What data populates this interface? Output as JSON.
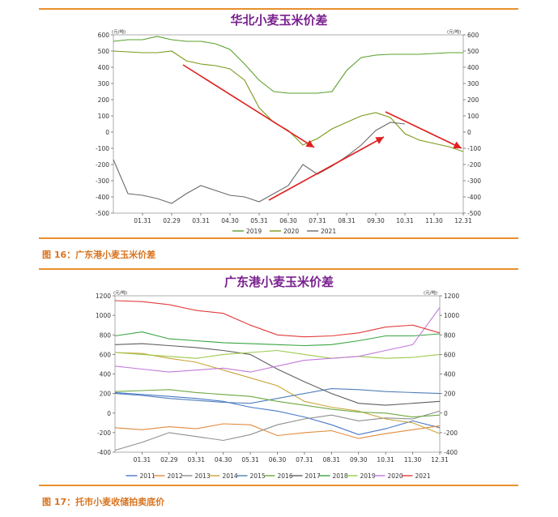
{
  "figure16": {
    "caption": "图 16：广东港小麦玉米价差"
  },
  "figure17": {
    "caption": "图 17：托市小麦收储拍卖底价"
  },
  "chart_data": [
    {
      "type": "line",
      "title": "华北小麦玉米价差",
      "unit_label": "(元/吨)",
      "ylim": [
        -500,
        600
      ],
      "y_ticks": [
        "600",
        "500",
        "400",
        "300",
        "200",
        "100",
        "0",
        "-100",
        "-200",
        "-300",
        "-400",
        "-500"
      ],
      "x_tick_labels": [
        "01.31",
        "02.29",
        "03.31",
        "04.30",
        "05.31",
        "06.30",
        "07.31",
        "08.31",
        "09.30",
        "10.31",
        "11.30",
        "12.31"
      ],
      "legend_position": "bottom",
      "series": [
        {
          "name": "2019",
          "color": "#5aa02c",
          "x": [
            0,
            0.5,
            1,
            1.5,
            2,
            2.5,
            3,
            3.5,
            4,
            4.5,
            5,
            5.5,
            6,
            6.5,
            7,
            7.5,
            8,
            8.5,
            9,
            9.5,
            10,
            10.5,
            11,
            11.5,
            12
          ],
          "values": [
            560,
            570,
            570,
            590,
            570,
            560,
            560,
            545,
            510,
            420,
            320,
            250,
            240,
            240,
            240,
            250,
            380,
            460,
            475,
            480,
            480,
            480,
            485,
            490,
            490
          ]
        },
        {
          "name": "2020",
          "color": "#7a9a1a",
          "x": [
            0,
            0.5,
            1,
            1.5,
            2,
            2.5,
            3,
            3.5,
            4,
            4.5,
            5,
            5.5,
            6,
            6.5,
            7,
            7.5,
            8,
            8.5,
            9,
            9.5,
            10,
            10.5,
            11,
            11.5,
            12
          ],
          "values": [
            500,
            495,
            490,
            490,
            500,
            440,
            420,
            410,
            390,
            320,
            150,
            60,
            10,
            -80,
            -40,
            20,
            60,
            100,
            120,
            90,
            -10,
            -50,
            -70,
            -90,
            -120
          ]
        },
        {
          "name": "2021",
          "color": "#6b6b6b",
          "x": [
            0,
            0.5,
            1,
            1.5,
            2,
            2.5,
            3,
            3.5,
            4,
            4.5,
            5,
            5.5,
            6,
            6.5,
            7,
            7.5,
            8,
            8.5,
            9,
            9.5,
            10
          ],
          "values": [
            -170,
            -380,
            -390,
            -410,
            -440,
            -380,
            -330,
            -360,
            -390,
            -400,
            -430,
            -380,
            -330,
            -200,
            -260,
            -210,
            -150,
            -80,
            10,
            60,
            50
          ]
        }
      ],
      "annotations": [
        "down-arrow 02.20–07.31",
        "up-arrow 05.31–10.15",
        "down-arrow 10.10–12.31"
      ]
    },
    {
      "type": "line",
      "title": "广东港小麦玉米价差",
      "unit_label": "(元/吨)",
      "ylim": [
        -400,
        1200
      ],
      "y_ticks": [
        "1200",
        "1000",
        "800",
        "600",
        "400",
        "200",
        "0",
        "-200",
        "-400"
      ],
      "x_tick_labels": [
        "01.31",
        "02.29",
        "03.31",
        "04.30",
        "05.31",
        "06.30",
        "07.31",
        "08.31",
        "09.30",
        "10.31",
        "11.30",
        "12.31"
      ],
      "legend_position": "bottom",
      "series": [
        {
          "name": "2011",
          "color": "#4a78c8",
          "x": [
            0,
            1,
            2,
            3,
            4,
            5,
            6,
            7,
            8,
            9,
            10,
            11,
            12
          ],
          "values": [
            210,
            190,
            170,
            150,
            120,
            60,
            20,
            -40,
            -120,
            -220,
            -160,
            -80,
            -150
          ]
        },
        {
          "name": "2012",
          "color": "#e28a3c",
          "x": [
            0,
            1,
            2,
            3,
            4,
            5,
            6,
            7,
            8,
            9,
            10,
            11,
            12
          ],
          "values": [
            -150,
            -170,
            -140,
            -160,
            -110,
            -120,
            -230,
            -200,
            -180,
            -260,
            -210,
            -170,
            -130
          ]
        },
        {
          "name": "2013",
          "color": "#8f8f8f",
          "x": [
            0,
            1,
            2,
            3,
            4,
            5,
            6,
            7,
            8,
            9,
            10,
            11,
            12
          ],
          "values": [
            -380,
            -300,
            -200,
            -240,
            -280,
            -220,
            -120,
            -60,
            -20,
            -80,
            -50,
            -60,
            20
          ]
        },
        {
          "name": "2014",
          "color": "#c9a53a",
          "x": [
            0,
            1,
            2,
            3,
            4,
            5,
            6,
            7,
            8,
            9,
            10,
            11,
            12
          ],
          "values": [
            620,
            610,
            560,
            520,
            440,
            360,
            280,
            120,
            60,
            20,
            -60,
            -100,
            -210
          ]
        },
        {
          "name": "2015",
          "color": "#4f7fb8",
          "x": [
            0,
            1,
            2,
            3,
            4,
            5,
            6,
            7,
            8,
            9,
            10,
            11,
            12
          ],
          "values": [
            200,
            180,
            150,
            130,
            110,
            100,
            150,
            200,
            250,
            240,
            220,
            210,
            200
          ]
        },
        {
          "name": "2016",
          "color": "#6ea842",
          "x": [
            0,
            1,
            2,
            3,
            4,
            5,
            6,
            7,
            8,
            9,
            10,
            11,
            12
          ],
          "values": [
            220,
            230,
            240,
            210,
            190,
            170,
            120,
            80,
            40,
            10,
            0,
            -40,
            -20
          ]
        },
        {
          "name": "2017",
          "color": "#5f5f5f",
          "x": [
            0,
            1,
            2,
            3,
            4,
            5,
            6,
            7,
            8,
            9,
            10,
            11,
            12
          ],
          "values": [
            700,
            710,
            690,
            670,
            640,
            600,
            450,
            320,
            200,
            100,
            80,
            100,
            120
          ]
        },
        {
          "name": "2018",
          "color": "#3aa542",
          "x": [
            0,
            1,
            2,
            3,
            4,
            5,
            6,
            7,
            8,
            9,
            10,
            11,
            12
          ],
          "values": [
            790,
            830,
            760,
            740,
            720,
            710,
            700,
            690,
            700,
            740,
            790,
            790,
            810
          ]
        },
        {
          "name": "2019",
          "color": "#9dc94a",
          "x": [
            0,
            1,
            2,
            3,
            4,
            5,
            6,
            7,
            8,
            9,
            10,
            11,
            12
          ],
          "values": [
            620,
            600,
            580,
            560,
            600,
            620,
            640,
            600,
            560,
            580,
            560,
            570,
            600
          ]
        },
        {
          "name": "2020",
          "color": "#c27ad9",
          "x": [
            0,
            1,
            2,
            3,
            4,
            5,
            6,
            7,
            8,
            9,
            10,
            11,
            12
          ],
          "values": [
            480,
            450,
            420,
            440,
            460,
            420,
            480,
            540,
            560,
            580,
            640,
            700,
            1080
          ]
        },
        {
          "name": "2021",
          "color": "#e23b3b",
          "x": [
            0,
            1,
            2,
            3,
            4,
            5,
            6,
            7,
            8,
            9,
            10,
            11,
            12
          ],
          "values": [
            1150,
            1140,
            1110,
            1050,
            1020,
            900,
            800,
            780,
            790,
            820,
            880,
            900,
            820
          ]
        }
      ]
    }
  ]
}
